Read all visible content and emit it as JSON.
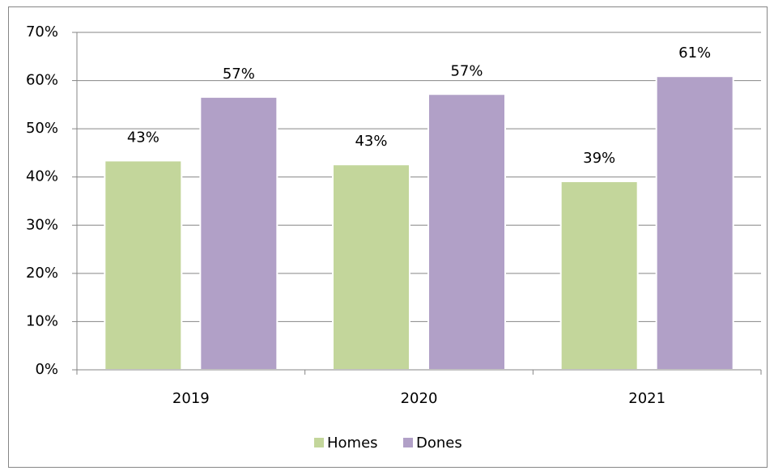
{
  "chart_data": {
    "type": "bar",
    "categories": [
      "2019",
      "2020",
      "2021"
    ],
    "series": [
      {
        "name": "Homes",
        "color": "#c3d69b",
        "values": [
          43.4,
          42.6,
          39.1
        ],
        "value_labels": [
          "43%",
          "43%",
          "39%"
        ]
      },
      {
        "name": "Dones",
        "color": "#b1a0c7",
        "values": [
          56.6,
          57.2,
          60.9
        ],
        "value_labels": [
          "57%",
          "57%",
          "61%"
        ]
      }
    ],
    "ylim": [
      0,
      70
    ],
    "yticks": [
      {
        "value": 0,
        "label": "0%"
      },
      {
        "value": 10,
        "label": "10%"
      },
      {
        "value": 20,
        "label": "20%"
      },
      {
        "value": 30,
        "label": "30%"
      },
      {
        "value": 40,
        "label": "40%"
      },
      {
        "value": 50,
        "label": "50%"
      },
      {
        "value": 60,
        "label": "60%"
      },
      {
        "value": 70,
        "label": "70%"
      }
    ],
    "grid": true,
    "legend": "bottom"
  }
}
